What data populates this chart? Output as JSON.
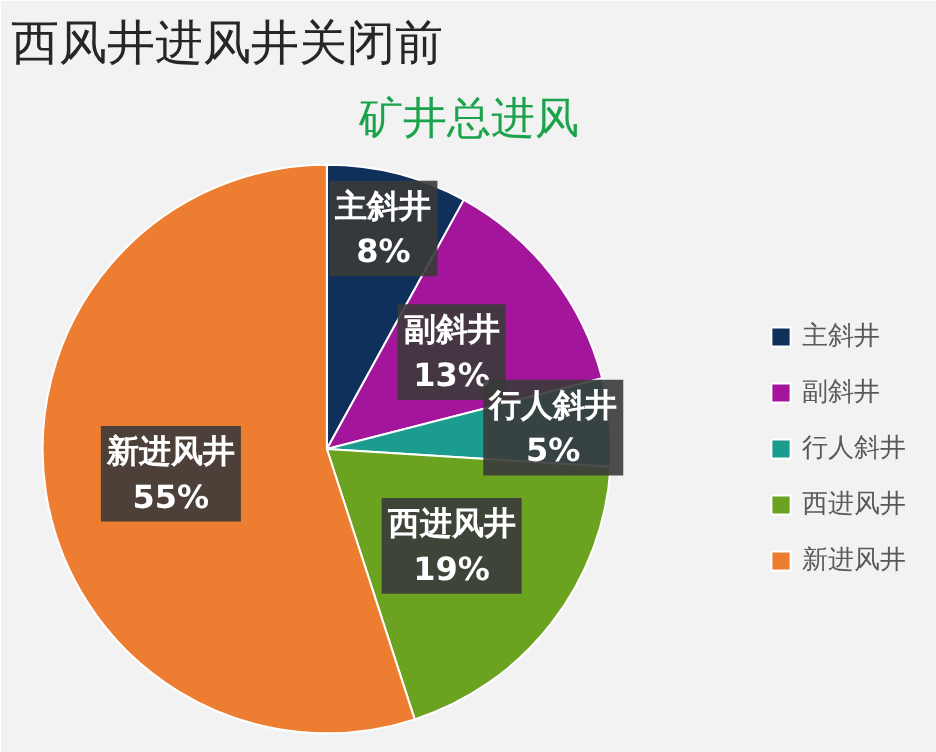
{
  "chart_data": {
    "type": "pie",
    "title": "西风井进风井关闭前",
    "subtitle": "矿井总进风",
    "categories": [
      "主斜井",
      "副斜井",
      "行人斜井",
      "西进风井",
      "新进风井"
    ],
    "values": [
      8,
      13,
      5,
      19,
      55
    ],
    "colors": [
      "#10305c",
      "#a3169c",
      "#1c9c8e",
      "#6ba21f",
      "#ed7d31"
    ],
    "value_labels": [
      "8%",
      "13%",
      "5%",
      "19%",
      "55%"
    ],
    "legend": "right"
  }
}
